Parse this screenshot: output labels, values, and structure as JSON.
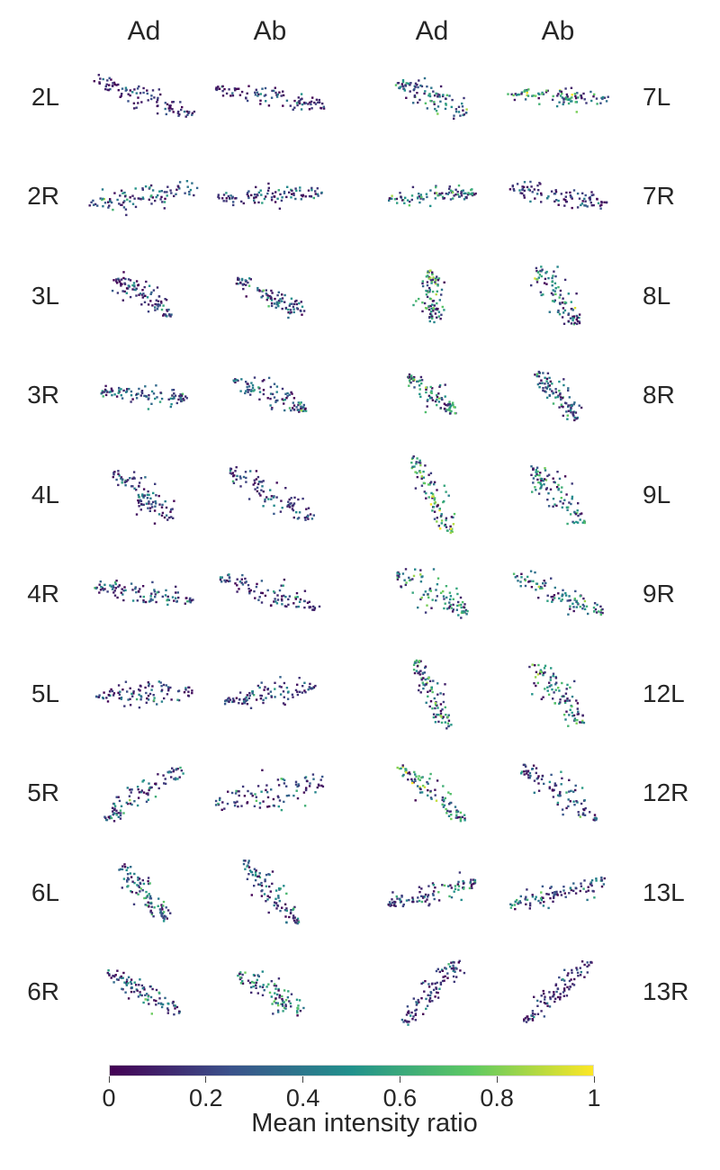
{
  "chart_data": {
    "type": "scatter",
    "title": "",
    "column_headers": [
      "Ad",
      "Ab",
      "Ad",
      "Ab"
    ],
    "left_row_labels": [
      "2L",
      "2R",
      "3L",
      "3R",
      "4L",
      "4R",
      "5L",
      "5R",
      "6L",
      "6R"
    ],
    "right_row_labels": [
      "7L",
      "7R",
      "8L",
      "8R",
      "9L",
      "9R",
      "12L",
      "12R",
      "13L",
      "13R"
    ],
    "colormap": "viridis",
    "colormap_stops": [
      "#440154",
      "#3b528b",
      "#21918c",
      "#5ec962",
      "#fde725"
    ],
    "colorbar": {
      "label": "Mean intensity ratio",
      "range": [
        0,
        1
      ],
      "tick_values": [
        0,
        0.2,
        0.4,
        0.6,
        0.8,
        1
      ],
      "tick_labels": [
        "0",
        "0.2",
        "0.4",
        "0.6",
        "0.8",
        "1"
      ]
    },
    "axes_visible": false,
    "grid": false
  }
}
